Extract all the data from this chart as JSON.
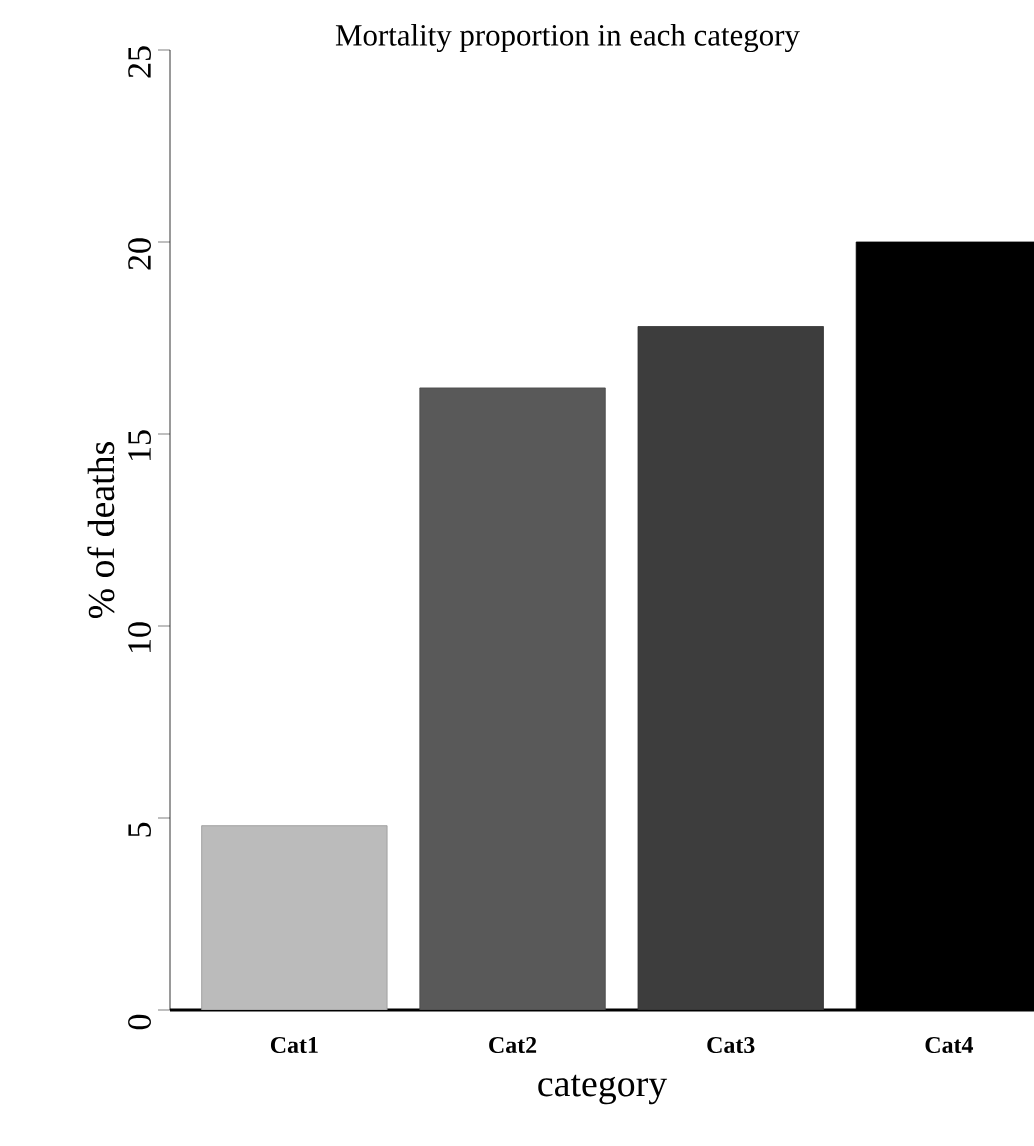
{
  "chart_data": {
    "type": "bar",
    "title": "Mortality proportion in each category",
    "xlabel": "category",
    "ylabel": "% of deaths",
    "categories": [
      "Cat1",
      "Cat2",
      "Cat3",
      "Cat4"
    ],
    "values": [
      4.8,
      16.2,
      17.8,
      20.0
    ],
    "colors": [
      "#bbbbbb",
      "#595959",
      "#3d3d3d",
      "#000000"
    ],
    "ylim": [
      0,
      25
    ],
    "yticks": [
      0,
      5,
      10,
      15,
      20,
      25
    ]
  }
}
